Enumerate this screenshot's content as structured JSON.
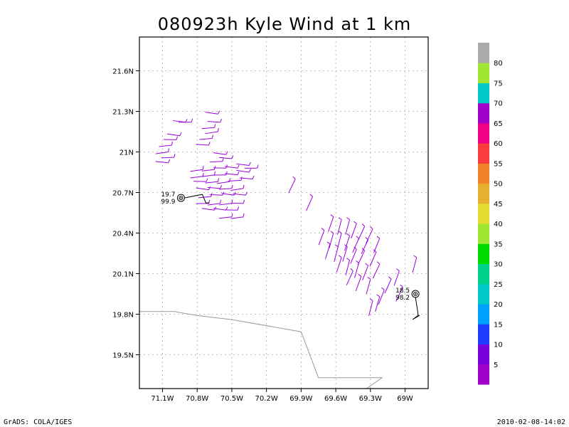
{
  "title": "080923h Kyle Wind at 1 km",
  "footer_left": "GrADS: COLA/IGES",
  "footer_right": "2010-02-08-14:02",
  "colors": {
    "wind_barb": "#9a00e0",
    "track": "#000000",
    "coast": "#999999",
    "grid": "#aaaaaa"
  },
  "chart_data": {
    "type": "map-wind-barbs",
    "x_ticks": [
      "71.1W",
      "70.8W",
      "70.5W",
      "70.2W",
      "69.9W",
      "69.6W",
      "69.3W",
      "69W"
    ],
    "y_ticks": [
      "21.6N",
      "21.3N",
      "21N",
      "20.7N",
      "20.4N",
      "20.1N",
      "19.8N",
      "19.5N"
    ],
    "lon_range": [
      -71.3,
      -68.8
    ],
    "lat_range": [
      19.25,
      21.85
    ],
    "grid": true,
    "storm_centers": [
      {
        "lon": -70.94,
        "lat": 20.66,
        "label_top": "19.7",
        "label_bottom": "99.9",
        "label_side": "left"
      },
      {
        "lon": -68.91,
        "lat": 19.95,
        "label_top": "18.5",
        "label_bottom": "98.2",
        "label_side": "left"
      }
    ],
    "coastline": [
      [
        -71.3,
        19.82
      ],
      [
        -71.0,
        19.82
      ],
      [
        -70.8,
        19.79
      ],
      [
        -70.5,
        19.76
      ],
      [
        -69.9,
        19.67
      ],
      [
        -69.75,
        19.33
      ],
      [
        -69.4,
        19.33
      ],
      [
        -69.2,
        19.33
      ],
      [
        -69.35,
        19.24
      ]
    ],
    "colorbar": {
      "labels": [
        "5",
        "10",
        "15",
        "20",
        "25",
        "30",
        "35",
        "40",
        "45",
        "50",
        "55",
        "60",
        "65",
        "70",
        "75",
        "80"
      ],
      "colors": [
        "#a000c8",
        "#7800dc",
        "#1e3cff",
        "#00a0ff",
        "#00c8c8",
        "#00d28c",
        "#00dc00",
        "#a0e632",
        "#e6dc32",
        "#e6af2d",
        "#f08228",
        "#fa3c3c",
        "#f00082",
        "#a000c8",
        "#00c8c8",
        "#a0e632",
        "#aaaaaa"
      ]
    },
    "wind_barbs": [
      [
        -70.85,
        21.22
      ],
      [
        -70.9,
        21.22
      ],
      [
        -70.95,
        21.12
      ],
      [
        -70.98,
        21.09
      ],
      [
        -71.02,
        21.05
      ],
      [
        -71.05,
        21.0
      ],
      [
        -71.0,
        20.96
      ],
      [
        -71.05,
        20.92
      ],
      [
        -70.62,
        21.28
      ],
      [
        -70.6,
        21.22
      ],
      [
        -70.65,
        21.18
      ],
      [
        -70.62,
        21.15
      ],
      [
        -70.67,
        21.1
      ],
      [
        -70.7,
        21.05
      ],
      [
        -70.55,
        20.98
      ],
      [
        -70.5,
        20.95
      ],
      [
        -70.58,
        20.93
      ],
      [
        -70.75,
        20.87
      ],
      [
        -70.65,
        20.87
      ],
      [
        -70.55,
        20.88
      ],
      [
        -70.45,
        20.88
      ],
      [
        -70.35,
        20.9
      ],
      [
        -70.28,
        20.88
      ],
      [
        -70.75,
        20.82
      ],
      [
        -70.65,
        20.83
      ],
      [
        -70.55,
        20.83
      ],
      [
        -70.45,
        20.83
      ],
      [
        -70.35,
        20.85
      ],
      [
        -70.72,
        20.78
      ],
      [
        -70.62,
        20.78
      ],
      [
        -70.52,
        20.78
      ],
      [
        -70.42,
        20.79
      ],
      [
        -70.32,
        20.8
      ],
      [
        -70.7,
        20.72
      ],
      [
        -70.6,
        20.73
      ],
      [
        -70.5,
        20.73
      ],
      [
        -70.4,
        20.73
      ],
      [
        -70.68,
        20.67
      ],
      [
        -70.58,
        20.68
      ],
      [
        -70.48,
        20.68
      ],
      [
        -70.38,
        20.68
      ],
      [
        -70.7,
        20.62
      ],
      [
        -70.6,
        20.62
      ],
      [
        -70.5,
        20.62
      ],
      [
        -70.4,
        20.62
      ],
      [
        -70.65,
        20.57
      ],
      [
        -70.55,
        20.57
      ],
      [
        -70.45,
        20.57
      ],
      [
        -70.5,
        20.52
      ],
      [
        -70.4,
        20.52
      ],
      [
        -69.95,
        20.8
      ],
      [
        -69.8,
        20.67
      ],
      [
        -69.62,
        20.52
      ],
      [
        -69.55,
        20.5
      ],
      [
        -69.48,
        20.5
      ],
      [
        -69.42,
        20.47
      ],
      [
        -69.35,
        20.45
      ],
      [
        -69.28,
        20.43
      ],
      [
        -69.7,
        20.42
      ],
      [
        -69.62,
        20.4
      ],
      [
        -69.55,
        20.4
      ],
      [
        -69.48,
        20.38
      ],
      [
        -69.4,
        20.36
      ],
      [
        -69.32,
        20.35
      ],
      [
        -69.22,
        20.36
      ],
      [
        -69.65,
        20.32
      ],
      [
        -69.58,
        20.3
      ],
      [
        -69.5,
        20.3
      ],
      [
        -69.42,
        20.28
      ],
      [
        -69.35,
        20.27
      ],
      [
        -69.25,
        20.26
      ],
      [
        -69.55,
        20.22
      ],
      [
        -69.48,
        20.2
      ],
      [
        -69.4,
        20.18
      ],
      [
        -69.32,
        20.16
      ],
      [
        -69.22,
        20.17
      ],
      [
        -69.45,
        20.12
      ],
      [
        -69.38,
        20.08
      ],
      [
        -69.3,
        20.06
      ],
      [
        -68.9,
        20.22
      ],
      [
        -69.05,
        20.12
      ],
      [
        -69.12,
        20.06
      ],
      [
        -69.02,
        20.0
      ],
      [
        -69.18,
        19.98
      ],
      [
        -69.22,
        19.93
      ],
      [
        -69.28,
        19.9
      ]
    ]
  }
}
